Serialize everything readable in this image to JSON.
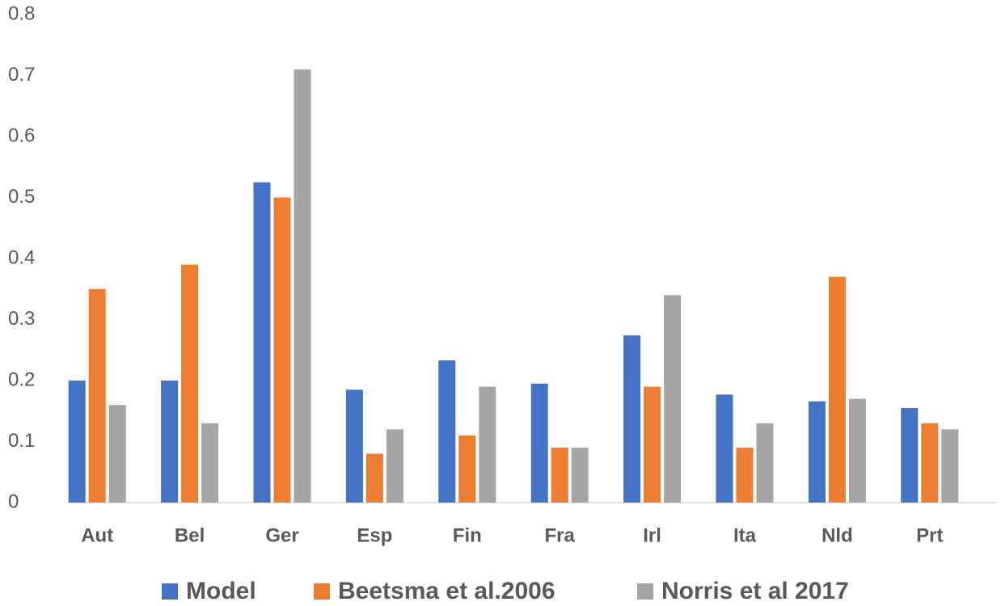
{
  "chart_data": {
    "type": "bar",
    "categories": [
      "Aut",
      "Bel",
      "Ger",
      "Esp",
      "Fin",
      "Fra",
      "Irl",
      "Ita",
      "Nld",
      "Prt"
    ],
    "series": [
      {
        "name": "Model",
        "color": "#4472c4",
        "values": [
          0.2,
          0.2,
          0.525,
          0.185,
          0.233,
          0.195,
          0.274,
          0.177,
          0.166,
          0.155
        ]
      },
      {
        "name": "Beetsma et al.2006",
        "color": "#ed7d31",
        "values": [
          0.35,
          0.39,
          0.5,
          0.08,
          0.11,
          0.09,
          0.19,
          0.09,
          0.37,
          0.13
        ]
      },
      {
        "name": "Norris et al 2017",
        "color": "#a5a5a5",
        "values": [
          0.16,
          0.13,
          0.71,
          0.12,
          0.19,
          0.09,
          0.34,
          0.13,
          0.17,
          0.12
        ]
      }
    ],
    "ylim": [
      0,
      0.8
    ],
    "yticks": [
      0,
      0.1,
      0.2,
      0.3,
      0.4,
      0.5,
      0.6,
      0.7,
      0.8
    ],
    "grid": false,
    "legend": "bottom"
  }
}
